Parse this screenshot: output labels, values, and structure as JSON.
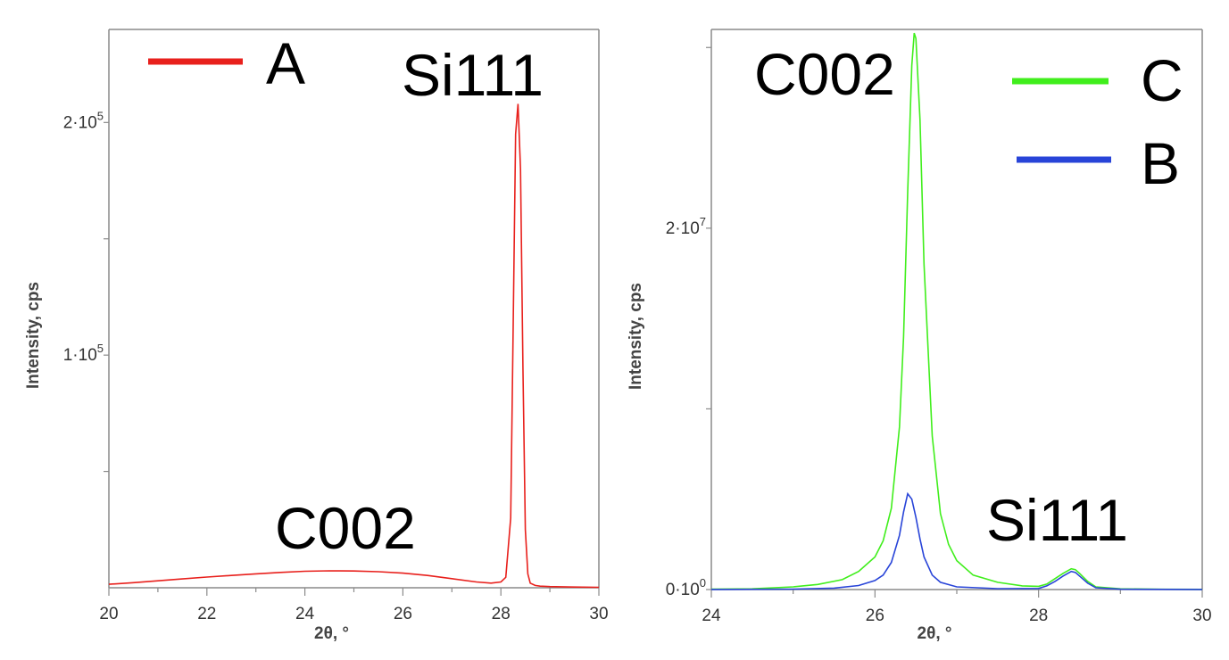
{
  "chart_data": [
    {
      "type": "line",
      "panel": "left",
      "xlabel": "2θ, °",
      "ylabel": "Intensity, cps",
      "xlim": [
        20,
        30
      ],
      "ylim": [
        0,
        240000
      ],
      "x_ticks": [
        20,
        22,
        24,
        26,
        28,
        30
      ],
      "x_tick_labels": [
        "20",
        "22",
        "24",
        "26",
        "28",
        "30"
      ],
      "x_minor_ticks": [
        21,
        23,
        25,
        27,
        29
      ],
      "y_ticks": [
        100000,
        200000
      ],
      "y_tick_labels": [
        {
          "base": "1·10",
          "exp": "5"
        },
        {
          "base": "2·10",
          "exp": "5"
        }
      ],
      "y_minor_ticks": [
        50000,
        150000
      ],
      "grid": false,
      "legend": {
        "position": "top-left",
        "entries": [
          {
            "name": "A",
            "color": "#e8201c"
          }
        ]
      },
      "annotations": [
        {
          "text": "Si111",
          "x": 27.35,
          "y": 222000
        },
        {
          "text": "C002",
          "x": 24.3,
          "y": 24000
        }
      ],
      "series": [
        {
          "name": "A",
          "color": "#e8201c",
          "x": [
            20.0,
            20.5,
            21.0,
            21.5,
            22.0,
            22.5,
            23.0,
            23.5,
            24.0,
            24.5,
            25.0,
            25.5,
            26.0,
            26.5,
            27.0,
            27.5,
            27.8,
            28.0,
            28.1,
            28.2,
            28.25,
            28.3,
            28.35,
            28.4,
            28.45,
            28.5,
            28.55,
            28.6,
            28.7,
            28.8,
            29.0,
            29.5,
            30.0
          ],
          "y": [
            1500,
            2200,
            3000,
            3800,
            4600,
            5300,
            6000,
            6600,
            7100,
            7300,
            7200,
            6900,
            6300,
            5300,
            3900,
            2500,
            2000,
            2500,
            4500,
            30000,
            110000,
            195000,
            208000,
            180000,
            95000,
            25000,
            6000,
            2000,
            1000,
            700,
            500,
            300,
            200
          ]
        }
      ]
    },
    {
      "type": "line",
      "panel": "right",
      "xlabel": "2θ, °",
      "ylabel": "Intensity, cps",
      "xlim": [
        24,
        30
      ],
      "ylim": [
        0,
        31000000
      ],
      "x_ticks": [
        24,
        26,
        28,
        30
      ],
      "x_tick_labels": [
        "24",
        "26",
        "28",
        "30"
      ],
      "x_minor_ticks": [
        25,
        27,
        29
      ],
      "y_ticks": [
        0,
        20000000
      ],
      "y_tick_labels": [
        {
          "base": "0·10",
          "exp": "0"
        },
        {
          "base": "2·10",
          "exp": "7"
        }
      ],
      "y_minor_ticks": [
        10000000,
        30000000
      ],
      "grid": false,
      "legend": {
        "position": "top-right",
        "entries": [
          {
            "name": "C",
            "color": "#40ee1c"
          },
          {
            "name": "B",
            "color": "#2844d8"
          }
        ]
      },
      "annotations": [
        {
          "text": "C002",
          "x": 25.7,
          "y": 30000000
        },
        {
          "text": "Si111",
          "x": 28.0,
          "y": 3400000
        }
      ],
      "series": [
        {
          "name": "C",
          "color": "#40ee1c",
          "x": [
            24.0,
            24.5,
            25.0,
            25.3,
            25.6,
            25.8,
            26.0,
            26.1,
            26.2,
            26.3,
            26.35,
            26.4,
            26.45,
            26.48,
            26.5,
            26.55,
            26.6,
            26.7,
            26.8,
            26.9,
            27.0,
            27.2,
            27.5,
            27.8,
            28.0,
            28.1,
            28.2,
            28.3,
            28.4,
            28.45,
            28.5,
            28.6,
            28.7,
            29.0,
            29.5,
            30.0
          ],
          "y": [
            20000,
            40000,
            150000,
            280000,
            550000,
            1000000,
            1800000,
            2700000,
            4500000,
            9000000,
            14000000,
            22000000,
            29000000,
            30800000,
            30500000,
            26000000,
            18000000,
            8500000,
            4200000,
            2500000,
            1600000,
            800000,
            400000,
            200000,
            180000,
            300000,
            600000,
            900000,
            1150000,
            1100000,
            900000,
            450000,
            150000,
            40000,
            15000,
            8000
          ]
        },
        {
          "name": "B",
          "color": "#2844d8",
          "x": [
            24.0,
            25.0,
            25.5,
            25.8,
            26.0,
            26.1,
            26.2,
            26.3,
            26.35,
            26.4,
            26.45,
            26.5,
            26.55,
            26.6,
            26.7,
            26.8,
            27.0,
            27.5,
            28.0,
            28.1,
            28.2,
            28.3,
            28.4,
            28.45,
            28.5,
            28.6,
            28.7,
            29.0,
            30.0
          ],
          "y": [
            5000,
            25000,
            80000,
            220000,
            500000,
            800000,
            1500000,
            3000000,
            4300000,
            5300000,
            5000000,
            4000000,
            2800000,
            1800000,
            800000,
            400000,
            150000,
            50000,
            60000,
            200000,
            450000,
            750000,
            1000000,
            950000,
            750000,
            350000,
            100000,
            20000,
            5000
          ]
        }
      ]
    }
  ]
}
